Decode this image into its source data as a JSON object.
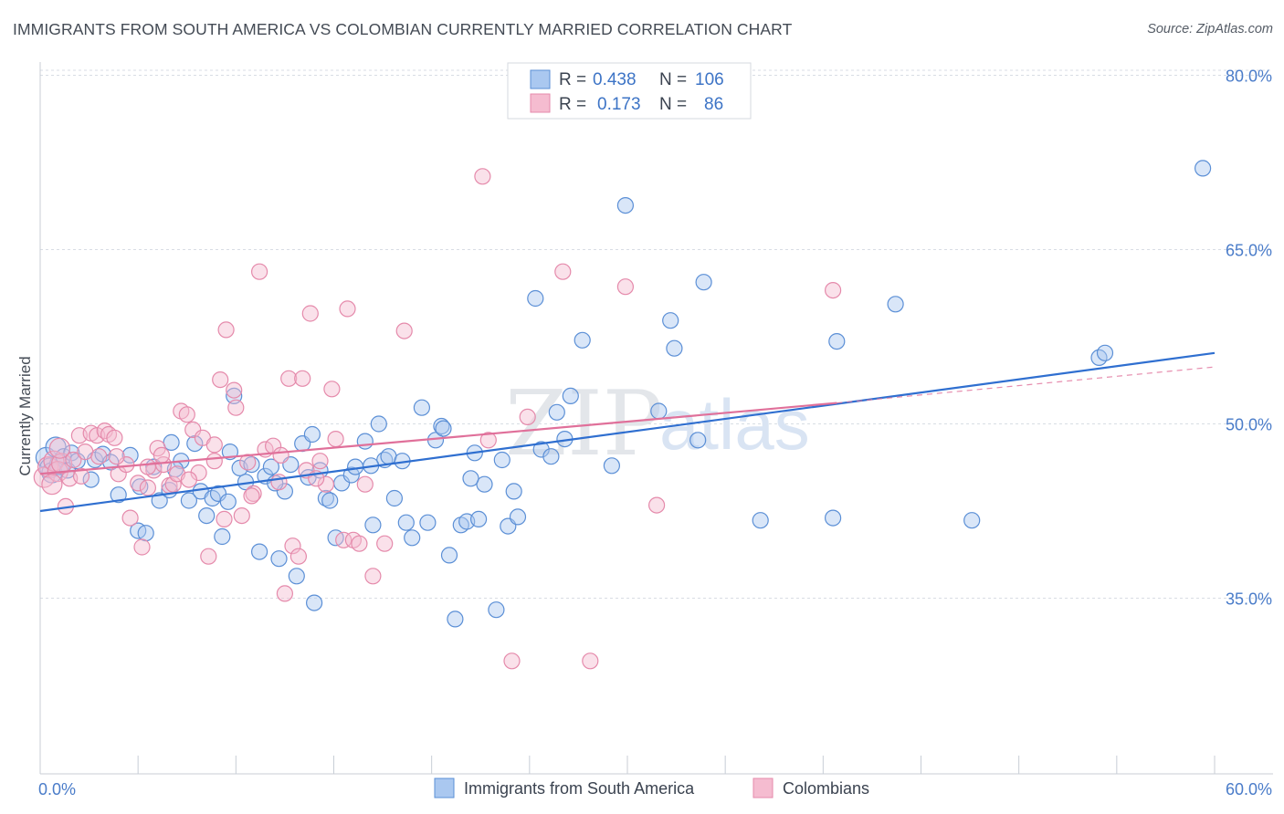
{
  "title": "IMMIGRANTS FROM SOUTH AMERICA VS COLOMBIAN CURRENTLY MARRIED CORRELATION CHART",
  "source": "Source: ZipAtlas.com",
  "watermark": {
    "zip": "ZIP",
    "atlas": "atlas"
  },
  "colors": {
    "blue_fill": "#aac8f0",
    "blue_stroke": "#5b8fd6",
    "blue_line": "#2f6fd0",
    "pink_fill": "#f5bcd0",
    "pink_stroke": "#e58aab",
    "pink_line": "#e0709a",
    "grid": "#d8dde4",
    "axis_text": "#4a7cc9"
  },
  "legend": {
    "rows": [
      {
        "r_label": "R =",
        "r_value": "0.438",
        "n_label": "N =",
        "n_value": "106"
      },
      {
        "r_label": "R =",
        "r_value": "0.173",
        "n_label": "N =",
        "n_value": "86"
      }
    ]
  },
  "chart_data": {
    "type": "scatter",
    "ylabel": "Currently Married",
    "xlim": [
      0,
      60
    ],
    "ylim": [
      20,
      82
    ],
    "x_tick_labels": [
      "0.0%",
      "60.0%"
    ],
    "y_ticks": [
      35,
      50,
      65,
      80
    ],
    "y_tick_labels": [
      "35.0%",
      "50.0%",
      "65.0%",
      "80.0%"
    ],
    "grid": true,
    "legend_position": "top-center",
    "series": [
      {
        "name": "Immigrants from South America",
        "color": "#aac8f0",
        "trend": {
          "x": [
            0,
            60
          ],
          "y": [
            42.5,
            56.1
          ]
        },
        "points": [
          [
            0.3,
            47.1
          ],
          [
            0.5,
            46.2
          ],
          [
            0.6,
            45.8
          ],
          [
            0.8,
            48.0
          ],
          [
            1.0,
            46.5
          ],
          [
            1.2,
            47.2
          ],
          [
            1.4,
            46.0
          ],
          [
            1.6,
            47.5
          ],
          [
            1.9,
            46.8
          ],
          [
            2.6,
            45.2
          ],
          [
            2.8,
            46.9
          ],
          [
            3.2,
            47.4
          ],
          [
            3.6,
            46.7
          ],
          [
            4.0,
            43.9
          ],
          [
            4.6,
            47.3
          ],
          [
            5.0,
            40.8
          ],
          [
            5.4,
            40.6
          ],
          [
            5.8,
            46.3
          ],
          [
            6.1,
            43.4
          ],
          [
            6.6,
            44.3
          ],
          [
            6.7,
            48.4
          ],
          [
            7.2,
            46.8
          ],
          [
            7.6,
            43.4
          ],
          [
            7.9,
            48.3
          ],
          [
            8.2,
            44.2
          ],
          [
            8.5,
            42.1
          ],
          [
            8.8,
            43.6
          ],
          [
            9.1,
            44.0
          ],
          [
            9.3,
            40.3
          ],
          [
            9.6,
            43.3
          ],
          [
            9.9,
            52.4
          ],
          [
            10.2,
            46.2
          ],
          [
            10.5,
            45.0
          ],
          [
            10.8,
            46.5
          ],
          [
            11.2,
            39.0
          ],
          [
            11.5,
            45.5
          ],
          [
            11.8,
            46.3
          ],
          [
            12.2,
            38.4
          ],
          [
            12.5,
            44.2
          ],
          [
            12.8,
            46.5
          ],
          [
            13.1,
            36.9
          ],
          [
            13.4,
            48.3
          ],
          [
            13.7,
            45.4
          ],
          [
            14.0,
            34.6
          ],
          [
            14.3,
            46.0
          ],
          [
            14.6,
            43.6
          ],
          [
            14.8,
            43.4
          ],
          [
            15.1,
            40.2
          ],
          [
            15.4,
            44.9
          ],
          [
            15.9,
            45.6
          ],
          [
            16.1,
            46.3
          ],
          [
            16.6,
            48.5
          ],
          [
            17.0,
            41.3
          ],
          [
            17.3,
            50.0
          ],
          [
            17.6,
            46.9
          ],
          [
            17.8,
            47.2
          ],
          [
            18.1,
            43.6
          ],
          [
            18.7,
            41.5
          ],
          [
            19.0,
            40.2
          ],
          [
            19.5,
            51.4
          ],
          [
            19.8,
            41.5
          ],
          [
            20.2,
            48.6
          ],
          [
            20.5,
            49.8
          ],
          [
            20.9,
            38.7
          ],
          [
            21.2,
            33.2
          ],
          [
            21.5,
            41.3
          ],
          [
            21.8,
            41.6
          ],
          [
            22.2,
            47.5
          ],
          [
            22.4,
            41.8
          ],
          [
            22.7,
            44.8
          ],
          [
            23.3,
            34.0
          ],
          [
            23.6,
            46.9
          ],
          [
            23.9,
            41.2
          ],
          [
            24.2,
            44.2
          ],
          [
            24.4,
            42.0
          ],
          [
            25.3,
            60.8
          ],
          [
            25.6,
            47.8
          ],
          [
            26.1,
            47.2
          ],
          [
            26.8,
            48.7
          ],
          [
            27.1,
            52.4
          ],
          [
            27.7,
            57.2
          ],
          [
            29.2,
            46.4
          ],
          [
            29.9,
            68.8
          ],
          [
            31.6,
            51.1
          ],
          [
            32.2,
            58.9
          ],
          [
            32.4,
            56.5
          ],
          [
            33.6,
            48.6
          ],
          [
            33.9,
            62.2
          ],
          [
            36.8,
            41.7
          ],
          [
            40.5,
            41.9
          ],
          [
            40.7,
            57.1
          ],
          [
            43.7,
            60.3
          ],
          [
            47.6,
            41.7
          ],
          [
            54.1,
            55.7
          ],
          [
            54.4,
            56.1
          ],
          [
            59.4,
            72.0
          ],
          [
            26.4,
            51.0
          ],
          [
            22.0,
            45.3
          ],
          [
            16.9,
            46.4
          ],
          [
            12.0,
            44.9
          ],
          [
            5.1,
            44.6
          ],
          [
            6.9,
            46.1
          ],
          [
            9.7,
            47.6
          ],
          [
            13.9,
            49.1
          ],
          [
            18.5,
            46.8
          ],
          [
            20.6,
            49.6
          ]
        ]
      },
      {
        "name": "Colombians",
        "color": "#f5bcd0",
        "trend": {
          "x": [
            0,
            40.7
          ],
          "y": [
            45.7,
            51.8
          ]
        },
        "dashed_extension": {
          "x": [
            40.7,
            60
          ],
          "y": [
            51.8,
            54.9
          ]
        },
        "points": [
          [
            0.2,
            45.4
          ],
          [
            0.4,
            46.3
          ],
          [
            0.7,
            46.8
          ],
          [
            0.9,
            45.9
          ],
          [
            1.1,
            46.6
          ],
          [
            1.3,
            42.9
          ],
          [
            1.5,
            45.3
          ],
          [
            1.7,
            46.9
          ],
          [
            2.0,
            49.0
          ],
          [
            2.3,
            47.6
          ],
          [
            2.6,
            49.2
          ],
          [
            2.9,
            49.0
          ],
          [
            3.3,
            49.4
          ],
          [
            3.5,
            49.1
          ],
          [
            3.8,
            48.8
          ],
          [
            4.0,
            45.7
          ],
          [
            4.4,
            46.5
          ],
          [
            4.6,
            41.9
          ],
          [
            5.0,
            44.9
          ],
          [
            5.2,
            39.4
          ],
          [
            5.5,
            44.5
          ],
          [
            5.8,
            46.0
          ],
          [
            6.0,
            47.9
          ],
          [
            6.3,
            46.5
          ],
          [
            6.6,
            44.7
          ],
          [
            6.8,
            44.8
          ],
          [
            7.0,
            45.7
          ],
          [
            7.2,
            51.1
          ],
          [
            7.5,
            50.8
          ],
          [
            7.8,
            49.5
          ],
          [
            8.1,
            45.8
          ],
          [
            8.3,
            48.8
          ],
          [
            8.6,
            38.6
          ],
          [
            8.9,
            46.8
          ],
          [
            9.2,
            53.8
          ],
          [
            9.4,
            41.8
          ],
          [
            9.5,
            58.1
          ],
          [
            9.9,
            52.9
          ],
          [
            10.0,
            51.4
          ],
          [
            10.3,
            42.1
          ],
          [
            10.6,
            46.7
          ],
          [
            10.9,
            44.0
          ],
          [
            11.2,
            63.1
          ],
          [
            11.5,
            47.8
          ],
          [
            11.9,
            48.1
          ],
          [
            12.2,
            45.0
          ],
          [
            12.5,
            35.4
          ],
          [
            12.7,
            53.9
          ],
          [
            12.9,
            39.5
          ],
          [
            13.2,
            38.6
          ],
          [
            13.4,
            53.9
          ],
          [
            13.6,
            46.0
          ],
          [
            13.8,
            59.5
          ],
          [
            14.3,
            46.8
          ],
          [
            14.6,
            44.8
          ],
          [
            14.9,
            53.0
          ],
          [
            15.1,
            48.7
          ],
          [
            15.5,
            40.0
          ],
          [
            15.7,
            59.9
          ],
          [
            16.0,
            40.0
          ],
          [
            16.3,
            39.7
          ],
          [
            16.6,
            44.8
          ],
          [
            17.0,
            36.9
          ],
          [
            17.6,
            39.7
          ],
          [
            18.6,
            58.0
          ],
          [
            22.6,
            71.3
          ],
          [
            22.9,
            48.6
          ],
          [
            24.1,
            29.6
          ],
          [
            24.9,
            50.6
          ],
          [
            26.7,
            63.1
          ],
          [
            28.1,
            29.6
          ],
          [
            29.9,
            61.8
          ],
          [
            31.5,
            43.0
          ],
          [
            40.5,
            61.5
          ],
          [
            5.5,
            46.3
          ],
          [
            3.0,
            47.2
          ],
          [
            10.8,
            43.8
          ],
          [
            12.3,
            47.3
          ],
          [
            14.1,
            45.3
          ],
          [
            2.1,
            45.5
          ],
          [
            1.0,
            47.9
          ],
          [
            0.6,
            44.8
          ],
          [
            3.9,
            47.2
          ],
          [
            7.6,
            45.2
          ],
          [
            8.9,
            48.2
          ],
          [
            6.2,
            47.3
          ]
        ]
      }
    ]
  }
}
